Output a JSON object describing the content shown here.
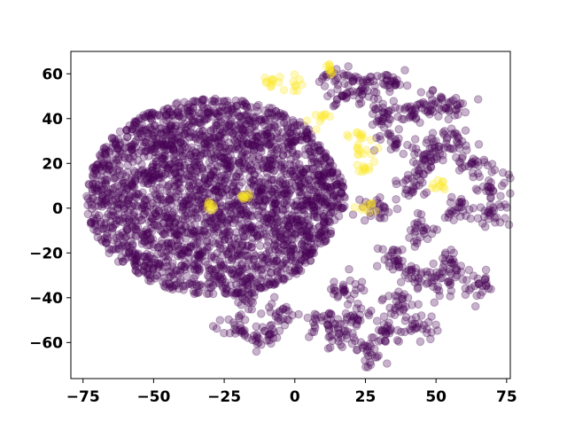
{
  "chart_data": {
    "type": "scatter",
    "title": "",
    "xlabel": "",
    "ylabel": "",
    "xlim": [
      -79.3,
      76.3
    ],
    "ylim": [
      -76.1,
      70.0
    ],
    "xticks": [
      -75,
      -50,
      -25,
      0,
      25,
      50,
      75
    ],
    "yticks": [
      -60,
      -40,
      -20,
      0,
      20,
      40,
      60
    ],
    "xtick_labels": [
      "−75",
      "−50",
      "−25",
      "0",
      "25",
      "50",
      "75"
    ],
    "ytick_labels": [
      "−60",
      "−40",
      "−20",
      "0",
      "20",
      "40",
      "60"
    ],
    "grid": false,
    "legend": "none",
    "marker_opacity": 0.3,
    "series": [
      {
        "color": "#440154",
        "regions": [
          {
            "shape": "main-blob",
            "center": [
              -28,
              5
            ],
            "extent_x": [
              -70,
              22
            ],
            "extent_y": [
              -42,
              46
            ]
          },
          {
            "shape": "cluster",
            "center": [
              -20,
              -55
            ],
            "spread": [
              3,
              3
            ]
          },
          {
            "shape": "cluster",
            "center": [
              -11,
              -58
            ],
            "spread": [
              3,
              3
            ]
          },
          {
            "shape": "cluster",
            "center": [
              -5,
              -48
            ],
            "spread": [
              3,
              3
            ]
          },
          {
            "shape": "cluster",
            "center": [
              -18,
              -40
            ],
            "spread": [
              3,
              3
            ]
          },
          {
            "shape": "cluster",
            "center": [
              10,
              -52
            ],
            "spread": [
              3,
              3
            ]
          },
          {
            "shape": "cluster",
            "center": [
              15,
              -57
            ],
            "spread": [
              3,
              3
            ]
          },
          {
            "shape": "cluster",
            "center": [
              27,
              -65
            ],
            "spread": [
              3,
              3
            ]
          },
          {
            "shape": "cluster",
            "center": [
              33,
              -55
            ],
            "spread": [
              3,
              3
            ]
          },
          {
            "shape": "cluster",
            "center": [
              44,
              -53
            ],
            "spread": [
              3,
              3
            ]
          },
          {
            "shape": "cluster",
            "center": [
              37,
              -42
            ],
            "spread": [
              3,
              3
            ]
          },
          {
            "shape": "cluster",
            "center": [
              22,
              -48
            ],
            "spread": [
              3,
              3
            ]
          },
          {
            "shape": "cluster",
            "center": [
              18,
              -35
            ],
            "spread": [
              3,
              3
            ]
          },
          {
            "shape": "cluster",
            "center": [
              43,
              -30
            ],
            "spread": [
              3,
              3
            ]
          },
          {
            "shape": "cluster",
            "center": [
              55,
              -25
            ],
            "spread": [
              3,
              3
            ]
          },
          {
            "shape": "cluster",
            "center": [
              53,
              -35
            ],
            "spread": [
              3,
              3
            ]
          },
          {
            "shape": "cluster",
            "center": [
              65,
              -35
            ],
            "spread": [
              3,
              3
            ]
          },
          {
            "shape": "cluster",
            "center": [
              35,
              -23
            ],
            "spread": [
              3,
              3
            ]
          },
          {
            "shape": "cluster",
            "center": [
              45,
              -10
            ],
            "spread": [
              3,
              3
            ]
          },
          {
            "shape": "cluster",
            "center": [
              57,
              0
            ],
            "spread": [
              3,
              3
            ]
          },
          {
            "shape": "cluster",
            "center": [
              30,
              0
            ],
            "spread": [
              3,
              3
            ]
          },
          {
            "shape": "cluster",
            "center": [
              40,
              10
            ],
            "spread": [
              3,
              3
            ]
          },
          {
            "shape": "cluster",
            "center": [
              45,
              20
            ],
            "spread": [
              3,
              3
            ]
          },
          {
            "shape": "cluster",
            "center": [
              50,
              26
            ],
            "spread": [
              3,
              3
            ]
          },
          {
            "shape": "cluster",
            "center": [
              57,
              32
            ],
            "spread": [
              3,
              3
            ]
          },
          {
            "shape": "cluster",
            "center": [
              62,
              20
            ],
            "spread": [
              3,
              3
            ]
          },
          {
            "shape": "cluster",
            "center": [
              47,
              48
            ],
            "spread": [
              3,
              3
            ]
          },
          {
            "shape": "cluster",
            "center": [
              55,
              45
            ],
            "spread": [
              3,
              3
            ]
          },
          {
            "shape": "cluster",
            "center": [
              40,
              42
            ],
            "spread": [
              3,
              3
            ]
          },
          {
            "shape": "cluster",
            "center": [
              30,
              42
            ],
            "spread": [
              3,
              3
            ]
          },
          {
            "shape": "cluster",
            "center": [
              25,
              55
            ],
            "spread": [
              3,
              3
            ]
          },
          {
            "shape": "cluster",
            "center": [
              15,
              58
            ],
            "spread": [
              3,
              3
            ]
          },
          {
            "shape": "cluster",
            "center": [
              36,
              56
            ],
            "spread": [
              3,
              3
            ]
          },
          {
            "shape": "cluster",
            "center": [
              35,
              30
            ],
            "spread": [
              3,
              3
            ]
          },
          {
            "shape": "cluster",
            "center": [
              18,
              50
            ],
            "spread": [
              3,
              3
            ]
          },
          {
            "shape": "cluster",
            "center": [
              70,
              10
            ],
            "spread": [
              3,
              3
            ]
          },
          {
            "shape": "cluster",
            "center": [
              70,
              -2
            ],
            "spread": [
              3,
              3
            ]
          }
        ]
      },
      {
        "color": "#fde725",
        "regions": [
          {
            "shape": "cluster",
            "center": [
              -8,
              57
            ],
            "spread": [
              2,
              2
            ]
          },
          {
            "shape": "cluster",
            "center": [
              -1,
              55
            ],
            "spread": [
              2,
              2
            ]
          },
          {
            "shape": "cluster",
            "center": [
              9,
              40
            ],
            "spread": [
              2,
              2
            ]
          },
          {
            "shape": "cluster",
            "center": [
              23,
              32
            ],
            "spread": [
              2,
              2
            ]
          },
          {
            "shape": "cluster",
            "center": [
              24,
              25
            ],
            "spread": [
              2,
              2
            ]
          },
          {
            "shape": "cluster",
            "center": [
              25,
              18
            ],
            "spread": [
              2,
              2
            ]
          },
          {
            "shape": "cluster",
            "center": [
              26,
              0
            ],
            "spread": [
              2,
              2
            ]
          },
          {
            "shape": "cluster",
            "center": [
              50,
              11
            ],
            "spread": [
              2,
              2
            ]
          },
          {
            "shape": "cluster",
            "center": [
              -30,
              1
            ],
            "spread": [
              1,
              1
            ]
          },
          {
            "shape": "cluster",
            "center": [
              -18,
              5
            ],
            "spread": [
              1,
              1
            ]
          },
          {
            "shape": "cluster",
            "center": [
              12,
              62
            ],
            "spread": [
              1,
              1
            ]
          }
        ]
      }
    ]
  }
}
